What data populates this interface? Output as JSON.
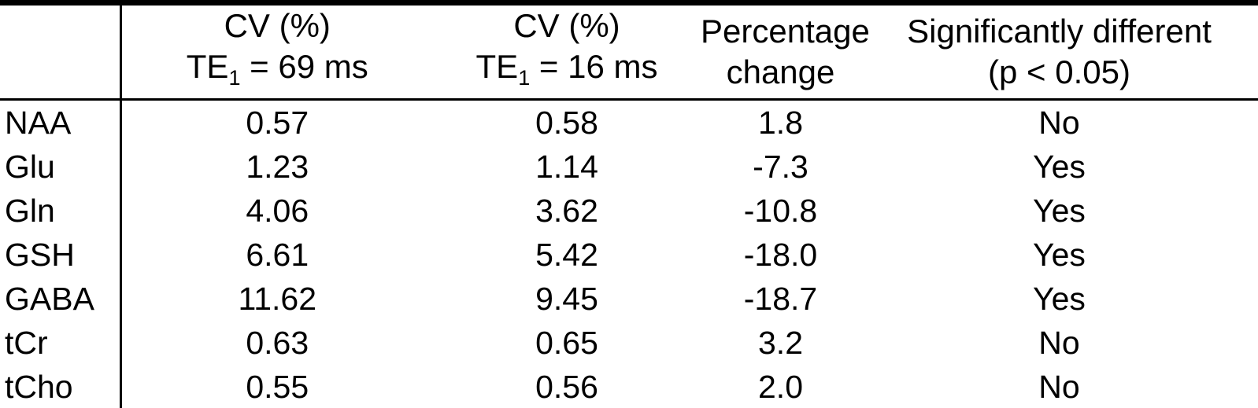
{
  "table": {
    "columns": {
      "metabolite": {
        "line1": "",
        "line2": ""
      },
      "cv_te69": {
        "line1": "CV (%)",
        "te_prefix": "TE",
        "te_sub": "1",
        "te_rest": " = 69 ms"
      },
      "cv_te16": {
        "line1": "CV (%)",
        "te_prefix": "TE",
        "te_sub": "1",
        "te_rest": " = 16 ms"
      },
      "pct_change": {
        "line1": "Percentage",
        "line2": "change"
      },
      "significant": {
        "line1": "Significantly different",
        "line2": "(p < 0.05)"
      }
    },
    "rows": [
      {
        "label": "NAA",
        "cv_te69": "0.57",
        "cv_te16": "0.58",
        "pct_change": "1.8",
        "significant": "No"
      },
      {
        "label": "Glu",
        "cv_te69": "1.23",
        "cv_te16": "1.14",
        "pct_change": "-7.3",
        "significant": "Yes"
      },
      {
        "label": "Gln",
        "cv_te69": "4.06",
        "cv_te16": "3.62",
        "pct_change": "-10.8",
        "significant": "Yes"
      },
      {
        "label": "GSH",
        "cv_te69": "6.61",
        "cv_te16": "5.42",
        "pct_change": "-18.0",
        "significant": "Yes"
      },
      {
        "label": "GABA",
        "cv_te69": "11.62",
        "cv_te16": "9.45",
        "pct_change": "-18.7",
        "significant": "Yes"
      },
      {
        "label": "tCr",
        "cv_te69": "0.63",
        "cv_te16": "0.65",
        "pct_change": "3.2",
        "significant": "No"
      },
      {
        "label": "tCho",
        "cv_te69": "0.55",
        "cv_te16": "0.56",
        "pct_change": "2.0",
        "significant": "No"
      }
    ],
    "colors": {
      "text": "#000000",
      "background": "#ffffff",
      "border": "#000000"
    }
  }
}
